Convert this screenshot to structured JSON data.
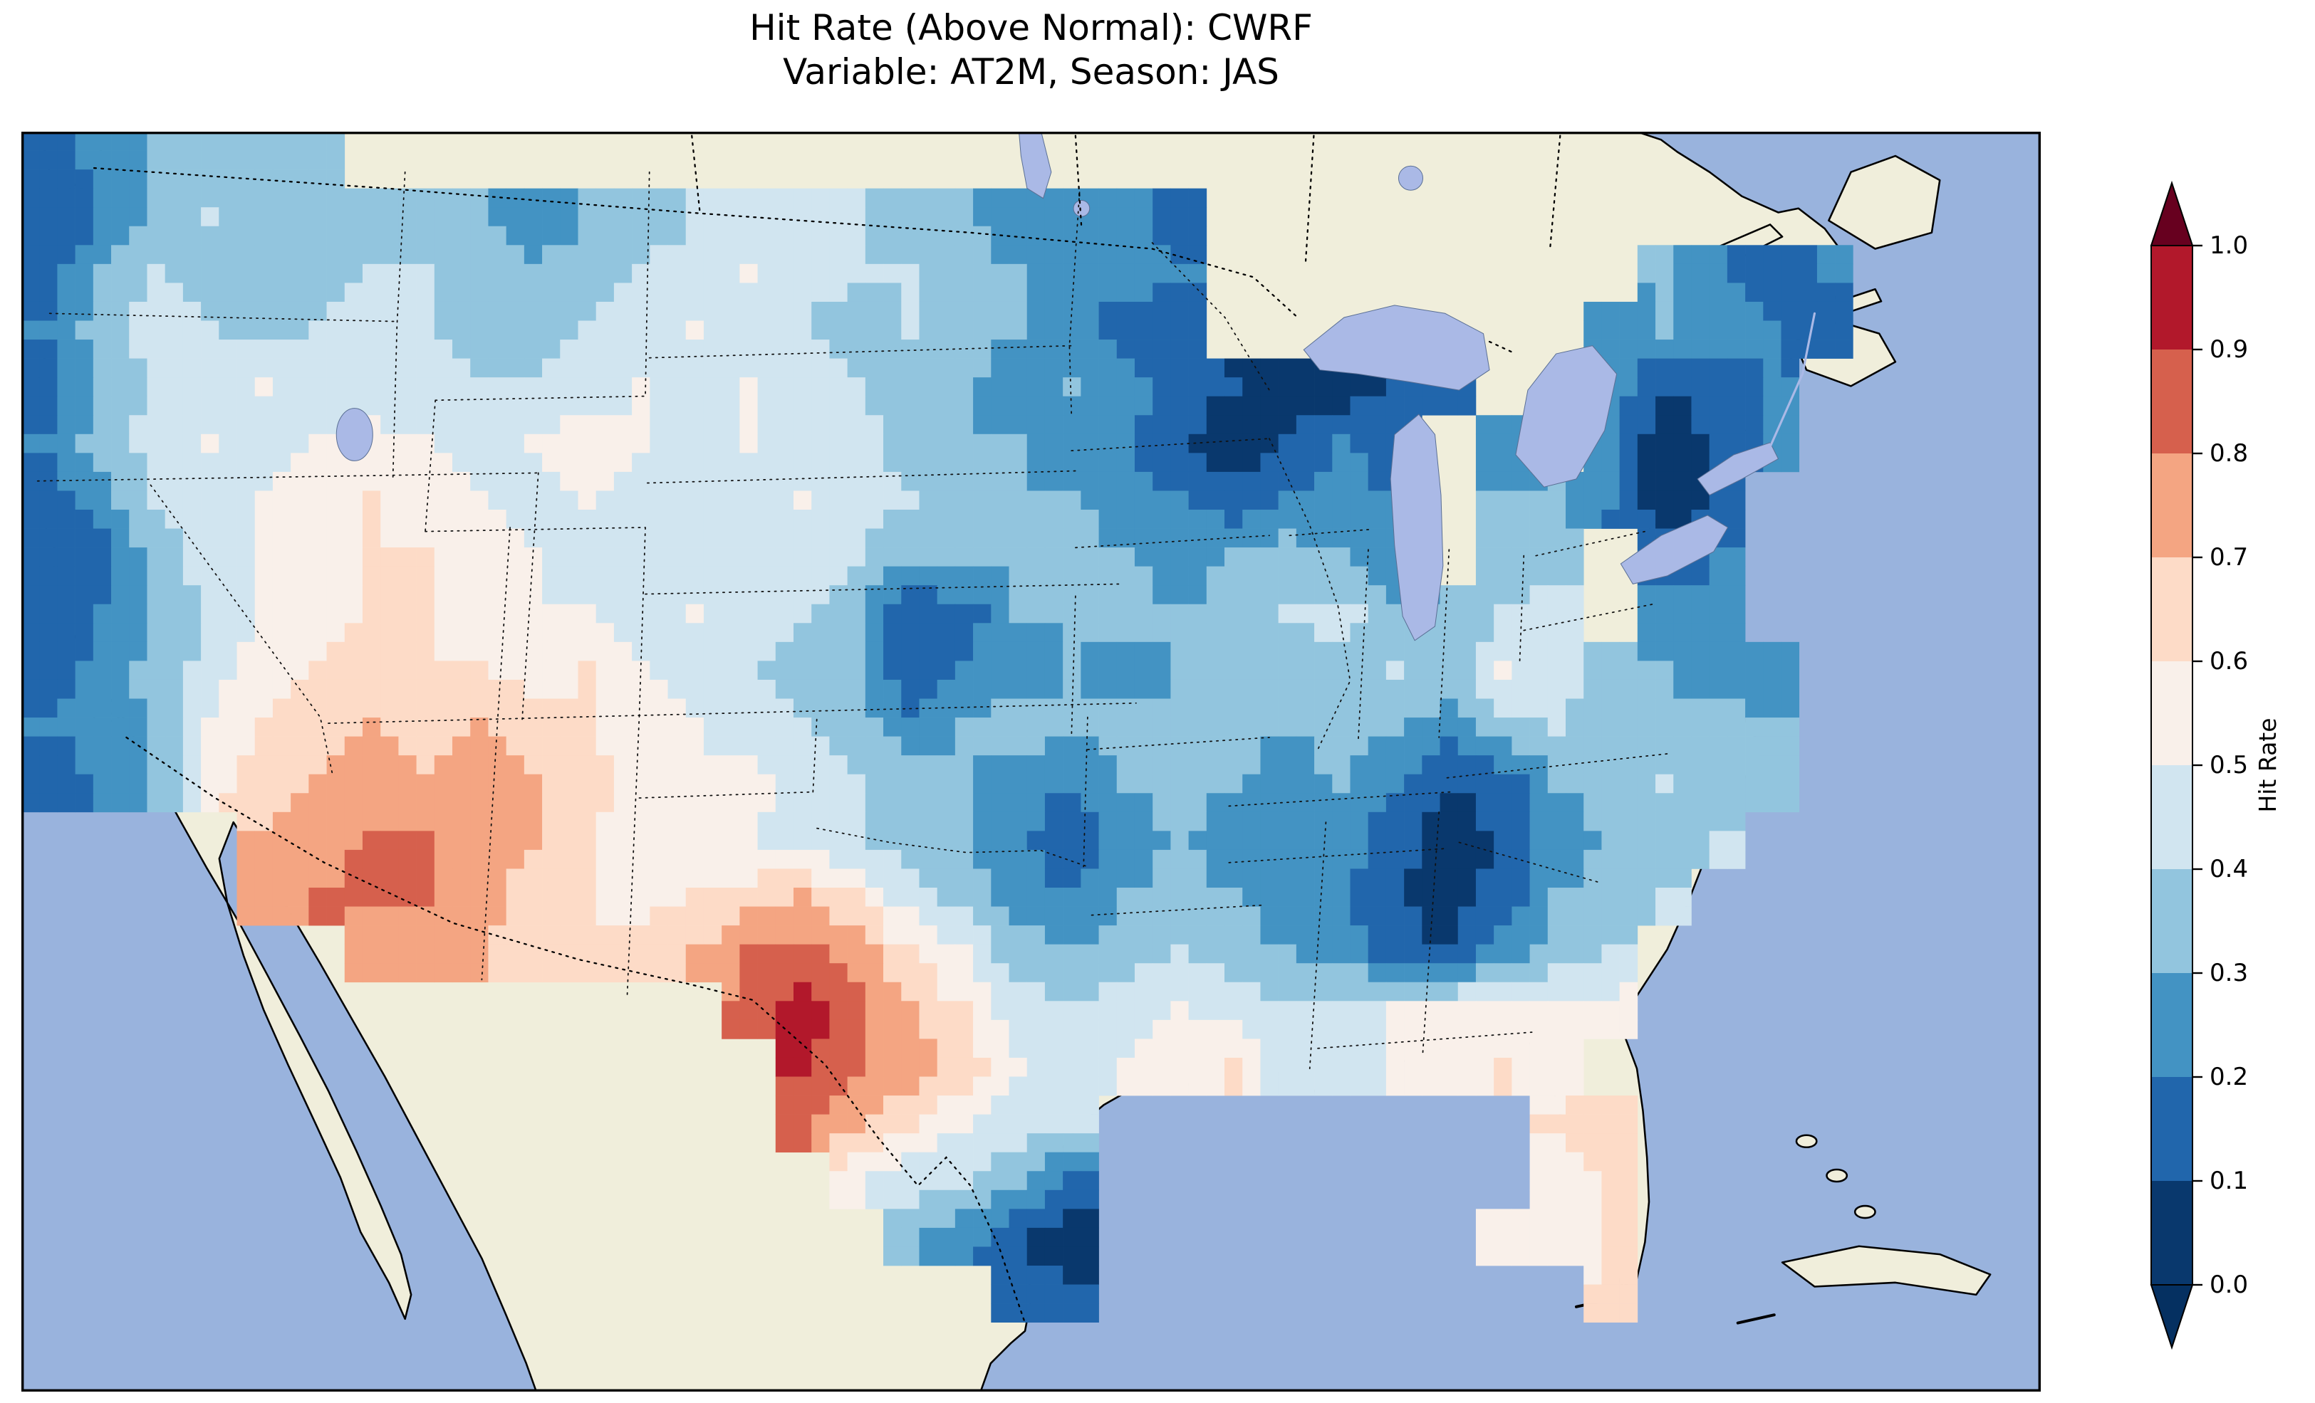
{
  "title": {
    "line1": "Hit Rate (Above Normal): CWRF",
    "line2": "Variable: AT2M, Season: JAS"
  },
  "colorbar": {
    "label": "Hit Rate",
    "ticks": [
      "1.0",
      "0.9",
      "0.8",
      "0.7",
      "0.6",
      "0.5",
      "0.4",
      "0.3",
      "0.2",
      "0.1",
      "0.0"
    ],
    "band_colors": [
      "#09386d",
      "#2166ac",
      "#4393c3",
      "#92c5de",
      "#d1e5f0",
      "#f9f0ea",
      "#fddbc7",
      "#f4a582",
      "#d6604d",
      "#b2182b"
    ],
    "under_color": "#053061",
    "over_color": "#67001f"
  },
  "map_colors": {
    "ocean": "#99b3dd",
    "land": "#f0eedb",
    "lake": "#aab9e6"
  },
  "chart_data": {
    "type": "heatmap",
    "title": "Hit Rate (Above Normal): CWRF",
    "subtitle": "Variable: AT2M, Season: JAS",
    "metric": "Hit Rate",
    "model": "CWRF",
    "variable": "AT2M",
    "season": "JAS",
    "value_range": [
      0,
      1
    ],
    "bin_width": 0.1,
    "colormap": "RdBu_r (blue = low hit rate, red = high hit rate)",
    "legend_position": "right vertical colorbar with extend arrows",
    "region": "Conterminous United States",
    "grid": {
      "cols": 34,
      "rows": 21,
      "x_span_pct": [
        0,
        90.7
      ],
      "y_span_pct": [
        0,
        94.5
      ],
      "values": [
        [
          0.15,
          0.25,
          0.3,
          0.35,
          0.3,
          0.35,
          null,
          null,
          null,
          null,
          null,
          null,
          null,
          null,
          null,
          null,
          null,
          null,
          null,
          null,
          null,
          null,
          null,
          null,
          null,
          null,
          null,
          null,
          null,
          null,
          null,
          null,
          null,
          null
        ],
        [
          0.1,
          0.2,
          0.35,
          0.4,
          0.35,
          0.3,
          0.3,
          0.35,
          0.3,
          0.25,
          0.3,
          0.35,
          0.4,
          0.45,
          0.45,
          0.4,
          0.35,
          0.3,
          0.25,
          0.25,
          0.25,
          0.15,
          null,
          null,
          null,
          null,
          null,
          null,
          null,
          null,
          null,
          null,
          null,
          null
        ],
        [
          0.15,
          0.3,
          0.4,
          0.35,
          0.3,
          0.35,
          0.4,
          0.4,
          0.35,
          0.3,
          0.35,
          0.4,
          0.45,
          0.5,
          0.45,
          0.4,
          0.4,
          0.35,
          0.3,
          0.2,
          0.25,
          0.2,
          null,
          null,
          null,
          null,
          null,
          null,
          null,
          null,
          0.3,
          0.2,
          0.15,
          0.2
        ],
        [
          0.2,
          0.35,
          0.45,
          0.4,
          0.35,
          0.4,
          0.45,
          0.4,
          0.35,
          0.35,
          0.4,
          0.45,
          0.5,
          0.45,
          0.4,
          0.35,
          0.4,
          0.35,
          0.3,
          0.25,
          0.15,
          0.1,
          null,
          null,
          null,
          null,
          null,
          null,
          null,
          0.25,
          0.3,
          0.25,
          0.2,
          0.15
        ],
        [
          0.15,
          0.3,
          0.4,
          0.45,
          0.5,
          0.45,
          0.4,
          0.45,
          0.4,
          0.4,
          0.45,
          0.5,
          0.45,
          0.5,
          0.45,
          0.4,
          0.35,
          0.3,
          0.25,
          0.3,
          0.25,
          0.15,
          0.1,
          0.05,
          0.05,
          0.1,
          0.15,
          null,
          null,
          0.25,
          0.1,
          0.15,
          0.2,
          null
        ],
        [
          0.2,
          0.35,
          0.45,
          0.5,
          0.45,
          0.5,
          0.55,
          0.5,
          0.45,
          0.5,
          0.55,
          0.5,
          0.45,
          0.5,
          0.45,
          0.45,
          0.35,
          0.3,
          0.3,
          0.25,
          0.2,
          0.1,
          0.05,
          0.1,
          0.2,
          0.15,
          null,
          0.25,
          null,
          0.2,
          0.05,
          0.1,
          0.25,
          null
        ],
        [
          0.15,
          0.25,
          0.4,
          0.45,
          0.5,
          0.55,
          0.6,
          0.55,
          0.5,
          0.45,
          0.5,
          0.45,
          0.4,
          0.45,
          0.5,
          0.45,
          0.4,
          0.35,
          0.3,
          0.3,
          0.25,
          0.2,
          0.15,
          0.2,
          0.25,
          0.2,
          null,
          0.3,
          0.3,
          0.2,
          0.05,
          0.1,
          null,
          null
        ],
        [
          0.1,
          0.15,
          0.35,
          0.45,
          0.5,
          0.55,
          0.6,
          0.6,
          0.55,
          0.5,
          0.45,
          0.4,
          0.45,
          0.4,
          0.45,
          0.4,
          0.3,
          0.35,
          0.3,
          0.35,
          0.3,
          0.25,
          0.3,
          0.35,
          0.3,
          0.25,
          null,
          0.3,
          0.35,
          null,
          0.15,
          0.2,
          null,
          null
        ],
        [
          0.1,
          0.2,
          0.3,
          0.4,
          0.5,
          0.55,
          0.6,
          0.6,
          0.55,
          0.5,
          0.5,
          0.45,
          0.5,
          0.45,
          0.4,
          0.35,
          0.1,
          0.15,
          0.3,
          0.3,
          0.35,
          0.3,
          0.35,
          0.4,
          0.45,
          0.3,
          0.3,
          0.4,
          0.45,
          null,
          0.25,
          0.2,
          null,
          null
        ],
        [
          0.15,
          0.25,
          0.35,
          0.45,
          0.55,
          0.6,
          0.65,
          0.6,
          0.6,
          0.55,
          0.6,
          0.5,
          0.45,
          0.4,
          0.35,
          0.3,
          0.1,
          0.2,
          0.25,
          0.3,
          0.25,
          0.3,
          0.35,
          0.3,
          0.35,
          0.4,
          0.35,
          0.5,
          0.45,
          0.35,
          0.3,
          0.25,
          0.2,
          null
        ],
        [
          0.2,
          0.25,
          0.3,
          0.5,
          0.6,
          0.65,
          0.7,
          0.65,
          0.7,
          0.65,
          0.6,
          0.55,
          0.5,
          0.45,
          0.4,
          0.35,
          0.25,
          0.3,
          0.35,
          0.3,
          0.35,
          0.3,
          0.35,
          0.3,
          0.35,
          0.3,
          0.25,
          0.35,
          0.4,
          0.35,
          0.3,
          0.35,
          0.3,
          null
        ],
        [
          0.15,
          0.2,
          0.3,
          0.55,
          0.65,
          0.7,
          0.75,
          0.7,
          0.75,
          0.7,
          0.65,
          0.55,
          0.5,
          0.55,
          0.45,
          0.4,
          0.35,
          0.3,
          0.25,
          0.2,
          0.3,
          0.35,
          0.3,
          0.25,
          0.3,
          0.2,
          0.1,
          0.15,
          0.3,
          0.35,
          0.4,
          0.35,
          0.3,
          null
        ],
        [
          null,
          null,
          null,
          null,
          0.7,
          0.75,
          0.8,
          0.8,
          0.75,
          0.7,
          0.6,
          0.55,
          0.5,
          0.5,
          0.45,
          0.4,
          0.35,
          0.3,
          0.2,
          0.15,
          0.25,
          0.3,
          0.25,
          0.2,
          0.25,
          0.15,
          0.05,
          0.1,
          0.25,
          0.3,
          0.35,
          0.4,
          null,
          null
        ],
        [
          null,
          null,
          null,
          null,
          0.75,
          0.8,
          0.85,
          0.8,
          0.75,
          0.65,
          0.6,
          0.55,
          0.6,
          0.65,
          0.7,
          0.6,
          0.45,
          0.35,
          0.25,
          0.2,
          0.3,
          0.35,
          0.3,
          0.25,
          0.2,
          0.1,
          0.05,
          0.15,
          0.3,
          0.35,
          0.4,
          null,
          null,
          null
        ],
        [
          null,
          null,
          null,
          null,
          null,
          null,
          0.7,
          0.75,
          0.7,
          0.65,
          0.6,
          0.65,
          0.7,
          0.8,
          0.85,
          0.75,
          0.6,
          0.5,
          0.35,
          0.3,
          0.35,
          0.4,
          0.35,
          0.3,
          0.25,
          0.15,
          0.1,
          0.25,
          0.35,
          0.4,
          null,
          null,
          null,
          null
        ],
        [
          null,
          null,
          null,
          null,
          null,
          null,
          null,
          null,
          null,
          null,
          null,
          null,
          null,
          0.8,
          0.95,
          0.85,
          0.7,
          0.6,
          0.45,
          0.4,
          0.45,
          0.5,
          0.45,
          0.4,
          0.45,
          0.5,
          0.55,
          0.5,
          0.5,
          0.55,
          null,
          null,
          null,
          null
        ],
        [
          null,
          null,
          null,
          null,
          null,
          null,
          null,
          null,
          null,
          null,
          null,
          null,
          null,
          null,
          0.9,
          0.8,
          0.75,
          0.65,
          0.5,
          0.45,
          0.5,
          0.55,
          0.6,
          0.45,
          0.45,
          0.5,
          0.55,
          0.6,
          0.55,
          null,
          null,
          null,
          null,
          null
        ],
        [
          null,
          null,
          null,
          null,
          null,
          null,
          null,
          null,
          null,
          null,
          null,
          null,
          null,
          null,
          0.85,
          0.7,
          0.6,
          0.5,
          0.45,
          0.4,
          null,
          null,
          null,
          null,
          null,
          null,
          null,
          null,
          0.6,
          0.65,
          null,
          null,
          null,
          null
        ],
        [
          null,
          null,
          null,
          null,
          null,
          null,
          null,
          null,
          null,
          null,
          null,
          null,
          null,
          null,
          null,
          0.5,
          0.45,
          0.4,
          0.35,
          0.15,
          null,
          null,
          null,
          null,
          null,
          null,
          null,
          null,
          0.55,
          0.6,
          null,
          null,
          null,
          null
        ],
        [
          null,
          null,
          null,
          null,
          null,
          null,
          null,
          null,
          null,
          null,
          null,
          null,
          null,
          null,
          null,
          null,
          0.3,
          0.25,
          0.1,
          0.05,
          null,
          null,
          null,
          null,
          null,
          null,
          null,
          0.5,
          0.55,
          0.6,
          null,
          null,
          null,
          null
        ],
        [
          null,
          null,
          null,
          null,
          null,
          null,
          null,
          null,
          null,
          null,
          null,
          null,
          null,
          null,
          null,
          null,
          null,
          null,
          0.15,
          0.1,
          null,
          null,
          null,
          null,
          null,
          null,
          null,
          null,
          null,
          0.6,
          null,
          null,
          null,
          null
        ]
      ]
    }
  }
}
